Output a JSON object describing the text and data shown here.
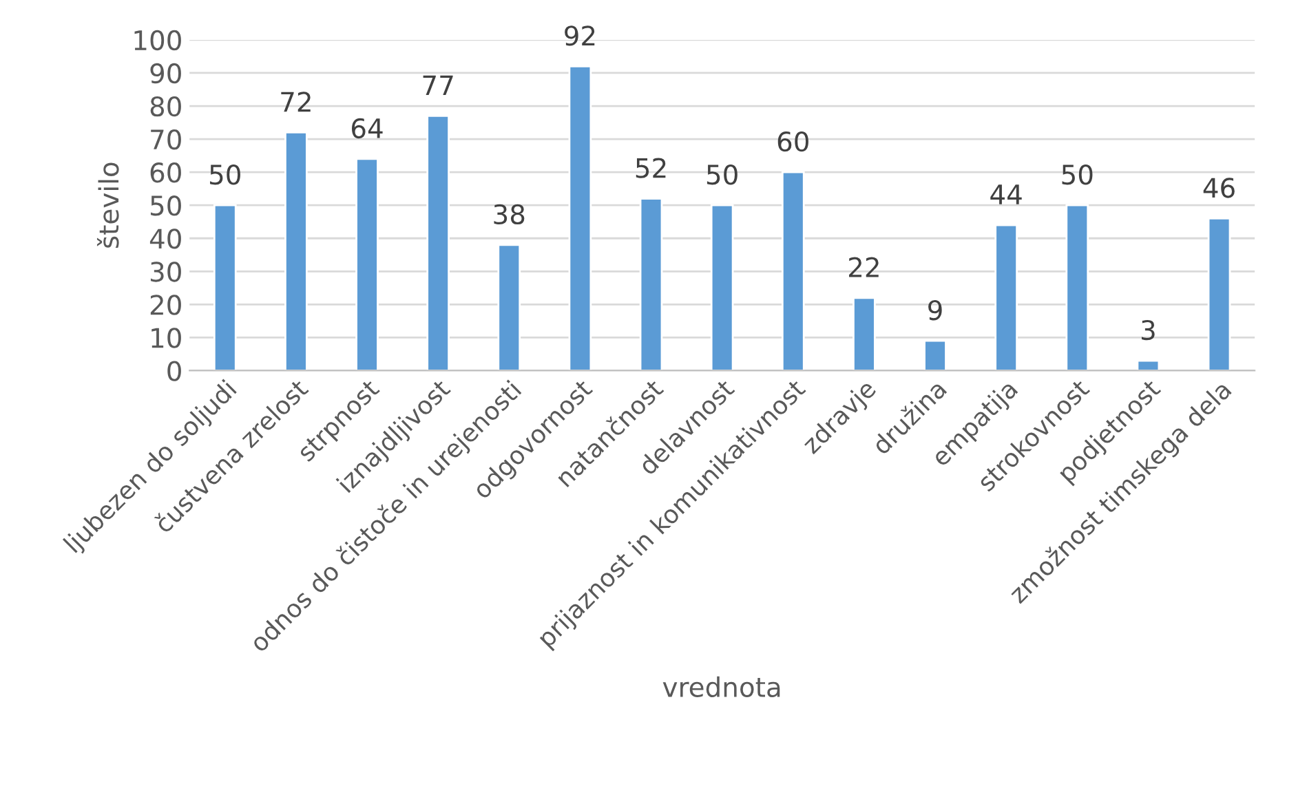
{
  "chart_data": {
    "type": "bar",
    "xlabel": "vrednota",
    "ylabel": "število",
    "categories": [
      "ljubezen do soljudi",
      "čustvena zrelost",
      "strpnost",
      "iznajdljivost",
      "odnos do čistoče in urejenosti",
      "odgovornost",
      "natančnost",
      "delavnost",
      "prijaznost in komunikativnost",
      "zdravje",
      "družina",
      "empatija",
      "strokovnost",
      "podjetnost",
      "zmožnost timskega dela"
    ],
    "values": [
      50,
      72,
      64,
      77,
      38,
      92,
      52,
      50,
      60,
      22,
      9,
      44,
      50,
      3,
      46
    ],
    "color": "#5b9bd5",
    "ylim": [
      0,
      100
    ],
    "yticks": [
      0,
      10,
      20,
      30,
      40,
      50,
      60,
      70,
      80,
      90,
      100
    ],
    "grid": "y",
    "data_labels": true,
    "legend": false
  }
}
